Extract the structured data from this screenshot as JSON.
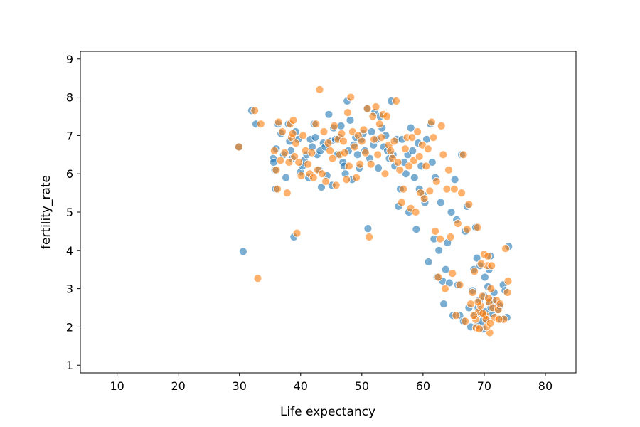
{
  "chart_data": {
    "type": "scatter",
    "title": "",
    "xlabel": "Life expectancy",
    "ylabel": "fertility_rate",
    "xlim": [
      4,
      85
    ],
    "ylim": [
      0.8,
      9.2
    ],
    "xticks": [
      10,
      20,
      30,
      40,
      50,
      60,
      70,
      80
    ],
    "yticks": [
      1,
      2,
      3,
      4,
      5,
      6,
      7,
      8,
      9
    ],
    "grid": false,
    "legend": "none",
    "series": [
      {
        "color": "#1f77b4",
        "points": [
          [
            29.9,
            6.7
          ],
          [
            30.6,
            3.97
          ],
          [
            32.0,
            7.65
          ],
          [
            32.7,
            7.3
          ],
          [
            35.5,
            6.4
          ],
          [
            35.6,
            6.3
          ],
          [
            35.8,
            6.1
          ],
          [
            35.9,
            5.6
          ],
          [
            36.0,
            6.65
          ],
          [
            36.3,
            7.3
          ],
          [
            36.8,
            7.05
          ],
          [
            37.2,
            6.5
          ],
          [
            37.6,
            5.9
          ],
          [
            38.0,
            7.3
          ],
          [
            38.2,
            6.85
          ],
          [
            38.4,
            6.6
          ],
          [
            38.6,
            6.4
          ],
          [
            38.9,
            4.35
          ],
          [
            39.2,
            7.1
          ],
          [
            39.6,
            6.9
          ],
          [
            40.0,
            6.05
          ],
          [
            40.3,
            6.2
          ],
          [
            40.6,
            6.35
          ],
          [
            41.0,
            6.5
          ],
          [
            41.3,
            5.9
          ],
          [
            41.6,
            6.9
          ],
          [
            41.9,
            6.7
          ],
          [
            42.2,
            7.3
          ],
          [
            42.4,
            6.95
          ],
          [
            42.7,
            6.5
          ],
          [
            43.0,
            6.1
          ],
          [
            43.2,
            6.6
          ],
          [
            43.4,
            5.65
          ],
          [
            43.7,
            6.8
          ],
          [
            44.0,
            6.7
          ],
          [
            44.3,
            5.95
          ],
          [
            44.6,
            7.55
          ],
          [
            44.9,
            6.85
          ],
          [
            45.1,
            5.7
          ],
          [
            45.4,
            7.2
          ],
          [
            45.7,
            6.9
          ],
          [
            46.0,
            6.5
          ],
          [
            46.3,
            6.95
          ],
          [
            46.6,
            7.25
          ],
          [
            46.9,
            6.3
          ],
          [
            47.1,
            6.2
          ],
          [
            47.3,
            6.0
          ],
          [
            47.6,
            7.9
          ],
          [
            47.8,
            6.6
          ],
          [
            48.1,
            7.4
          ],
          [
            48.4,
            5.85
          ],
          [
            48.7,
            6.75
          ],
          [
            49.0,
            6.95
          ],
          [
            49.3,
            6.5
          ],
          [
            49.6,
            6.15
          ],
          [
            49.9,
            6.9
          ],
          [
            50.2,
            7.05
          ],
          [
            50.5,
            6.6
          ],
          [
            50.8,
            7.7
          ],
          [
            51.0,
            4.57
          ],
          [
            51.3,
            6.4
          ],
          [
            51.6,
            7.1
          ],
          [
            51.9,
            6.75
          ],
          [
            52.1,
            7.6
          ],
          [
            52.4,
            6.9
          ],
          [
            52.7,
            6.15
          ],
          [
            53.0,
            7.5
          ],
          [
            53.3,
            7.2
          ],
          [
            53.6,
            6.7
          ],
          [
            53.9,
            7.0
          ],
          [
            54.2,
            6.6
          ],
          [
            54.5,
            6.4
          ],
          [
            54.8,
            7.9
          ],
          [
            55.1,
            6.5
          ],
          [
            55.4,
            6.2
          ],
          [
            55.7,
            6.9
          ],
          [
            56.0,
            5.15
          ],
          [
            56.3,
            5.6
          ],
          [
            56.6,
            6.9
          ],
          [
            56.9,
            6.3
          ],
          [
            57.2,
            6.0
          ],
          [
            57.5,
            6.5
          ],
          [
            57.7,
            5.0
          ],
          [
            58.0,
            7.2
          ],
          [
            58.3,
            6.6
          ],
          [
            58.6,
            5.9
          ],
          [
            58.9,
            4.55
          ],
          [
            59.2,
            6.8
          ],
          [
            59.4,
            5.6
          ],
          [
            59.7,
            6.2
          ],
          [
            60.0,
            5.45
          ],
          [
            60.3,
            5.25
          ],
          [
            60.6,
            6.9
          ],
          [
            60.9,
            3.7
          ],
          [
            61.2,
            7.3
          ],
          [
            61.5,
            6.3
          ],
          [
            61.8,
            4.3
          ],
          [
            62.0,
            5.9
          ],
          [
            62.3,
            3.3
          ],
          [
            62.6,
            4.0
          ],
          [
            62.9,
            5.25
          ],
          [
            63.2,
            3.2
          ],
          [
            63.4,
            2.6
          ],
          [
            63.7,
            3.5
          ],
          [
            64.0,
            4.2
          ],
          [
            64.3,
            3.15
          ],
          [
            64.6,
            5.0
          ],
          [
            64.9,
            2.3
          ],
          [
            65.2,
            5.85
          ],
          [
            65.5,
            4.8
          ],
          [
            65.7,
            3.1
          ],
          [
            66.0,
            2.3
          ],
          [
            66.3,
            6.5
          ],
          [
            66.6,
            2.15
          ],
          [
            66.9,
            4.5
          ],
          [
            67.2,
            5.15
          ],
          [
            67.5,
            2.5
          ],
          [
            67.8,
            2.0
          ],
          [
            68.1,
            2.95
          ],
          [
            68.3,
            3.5
          ],
          [
            68.6,
            4.6
          ],
          [
            68.9,
            2.05
          ],
          [
            69.2,
            2.7
          ],
          [
            69.5,
            2.35
          ],
          [
            69.8,
            1.95
          ],
          [
            70.1,
            3.3
          ],
          [
            70.4,
            2.2
          ],
          [
            70.7,
            2.65
          ],
          [
            71.0,
            3.85
          ],
          [
            71.3,
            2.35
          ],
          [
            71.6,
            2.9
          ],
          [
            71.9,
            2.6
          ],
          [
            72.2,
            2.45
          ],
          [
            72.5,
            2.55
          ],
          [
            72.8,
            2.2
          ],
          [
            73.1,
            3.1
          ],
          [
            73.4,
            2.95
          ],
          [
            73.7,
            2.25
          ],
          [
            74.0,
            4.1
          ],
          [
            68.5,
            2.3
          ],
          [
            69.0,
            2.5
          ],
          [
            69.3,
            3.6
          ],
          [
            70.0,
            2.8
          ],
          [
            70.2,
            2.4
          ],
          [
            70.6,
            3.05
          ],
          [
            71.1,
            2.5
          ],
          [
            69.7,
            2.15
          ],
          [
            68.8,
            3.8
          ],
          [
            70.8,
            3.5
          ],
          [
            71.4,
            2.7
          ]
        ]
      },
      {
        "color": "#ff7f0e",
        "points": [
          [
            29.9,
            6.7
          ],
          [
            32.5,
            7.65
          ],
          [
            33.0,
            3.27
          ],
          [
            33.5,
            7.3
          ],
          [
            35.7,
            6.6
          ],
          [
            36.0,
            6.1
          ],
          [
            36.2,
            5.6
          ],
          [
            36.4,
            7.35
          ],
          [
            36.7,
            6.35
          ],
          [
            37.0,
            7.1
          ],
          [
            37.4,
            6.55
          ],
          [
            37.8,
            5.5
          ],
          [
            38.1,
            6.3
          ],
          [
            38.3,
            7.3
          ],
          [
            38.5,
            6.95
          ],
          [
            38.7,
            7.05
          ],
          [
            38.8,
            7.4
          ],
          [
            39.0,
            6.45
          ],
          [
            39.2,
            6.8
          ],
          [
            39.4,
            4.45
          ],
          [
            39.7,
            6.3
          ],
          [
            40.1,
            5.95
          ],
          [
            40.4,
            7.0
          ],
          [
            40.8,
            6.6
          ],
          [
            41.2,
            6.25
          ],
          [
            41.5,
            6.0
          ],
          [
            41.8,
            6.55
          ],
          [
            42.1,
            5.9
          ],
          [
            42.5,
            7.3
          ],
          [
            42.8,
            6.1
          ],
          [
            43.1,
            8.2
          ],
          [
            43.5,
            6.0
          ],
          [
            43.8,
            7.1
          ],
          [
            44.1,
            5.8
          ],
          [
            44.5,
            6.8
          ],
          [
            44.8,
            6.6
          ],
          [
            45.2,
            6.4
          ],
          [
            45.5,
            7.25
          ],
          [
            45.8,
            5.7
          ],
          [
            46.1,
            6.9
          ],
          [
            46.4,
            6.5
          ],
          [
            46.7,
            7.05
          ],
          [
            47.0,
            6.85
          ],
          [
            47.2,
            6.55
          ],
          [
            47.5,
            5.85
          ],
          [
            47.7,
            7.6
          ],
          [
            47.9,
            6.2
          ],
          [
            48.2,
            8.0
          ],
          [
            48.5,
            7.1
          ],
          [
            48.8,
            6.7
          ],
          [
            49.1,
            5.9
          ],
          [
            49.4,
            7.0
          ],
          [
            49.7,
            6.25
          ],
          [
            50.0,
            6.85
          ],
          [
            50.3,
            7.15
          ],
          [
            50.6,
            6.55
          ],
          [
            50.9,
            7.7
          ],
          [
            51.2,
            4.35
          ],
          [
            51.5,
            6.25
          ],
          [
            51.8,
            7.5
          ],
          [
            52.0,
            6.9
          ],
          [
            52.3,
            7.75
          ],
          [
            52.6,
            6.5
          ],
          [
            52.9,
            7.3
          ],
          [
            53.2,
            6.95
          ],
          [
            53.5,
            7.55
          ],
          [
            53.8,
            6.0
          ],
          [
            54.1,
            7.5
          ],
          [
            54.4,
            6.75
          ],
          [
            54.7,
            6.6
          ],
          [
            55.0,
            6.4
          ],
          [
            55.3,
            6.85
          ],
          [
            55.6,
            7.9
          ],
          [
            55.9,
            6.3
          ],
          [
            56.2,
            6.1
          ],
          [
            56.5,
            5.25
          ],
          [
            56.8,
            5.6
          ],
          [
            57.1,
            6.65
          ],
          [
            57.4,
            6.95
          ],
          [
            57.7,
            6.2
          ],
          [
            58.0,
            5.1
          ],
          [
            58.2,
            6.95
          ],
          [
            58.5,
            6.35
          ],
          [
            58.8,
            5.0
          ],
          [
            59.1,
            7.1
          ],
          [
            59.4,
            6.45
          ],
          [
            59.6,
            5.5
          ],
          [
            59.9,
            6.75
          ],
          [
            60.2,
            5.35
          ],
          [
            60.5,
            6.2
          ],
          [
            60.8,
            6.65
          ],
          [
            61.1,
            5.55
          ],
          [
            61.4,
            7.35
          ],
          [
            61.7,
            6.95
          ],
          [
            62.0,
            4.5
          ],
          [
            62.2,
            5.8
          ],
          [
            62.5,
            3.3
          ],
          [
            62.8,
            4.3
          ],
          [
            63.0,
            7.25
          ],
          [
            63.3,
            6.5
          ],
          [
            63.6,
            3.0
          ],
          [
            63.9,
            5.6
          ],
          [
            64.2,
            6.1
          ],
          [
            64.5,
            4.35
          ],
          [
            64.8,
            3.4
          ],
          [
            65.1,
            5.6
          ],
          [
            65.4,
            2.3
          ],
          [
            65.7,
            4.7
          ],
          [
            66.0,
            3.1
          ],
          [
            66.3,
            5.5
          ],
          [
            66.6,
            6.5
          ],
          [
            66.9,
            2.15
          ],
          [
            67.2,
            4.55
          ],
          [
            67.5,
            5.2
          ],
          [
            67.8,
            2.6
          ],
          [
            68.1,
            2.9
          ],
          [
            68.4,
            3.45
          ],
          [
            68.6,
            2.2
          ],
          [
            68.9,
            4.6
          ],
          [
            69.1,
            2.4
          ],
          [
            69.4,
            2.55
          ],
          [
            69.7,
            2.8
          ],
          [
            70.0,
            3.9
          ],
          [
            70.2,
            2.3
          ],
          [
            70.5,
            3.6
          ],
          [
            70.8,
            2.65
          ],
          [
            71.1,
            3.0
          ],
          [
            71.4,
            2.5
          ],
          [
            71.7,
            2.25
          ],
          [
            72.0,
            2.7
          ],
          [
            72.3,
            2.45
          ],
          [
            72.6,
            2.6
          ],
          [
            73.2,
            2.2
          ],
          [
            73.5,
            4.05
          ],
          [
            73.8,
            2.9
          ],
          [
            73.9,
            3.2
          ],
          [
            68.7,
            1.98
          ],
          [
            69.2,
            1.95
          ],
          [
            70.3,
            2.2
          ],
          [
            70.9,
            1.85
          ],
          [
            69.5,
            3.65
          ],
          [
            70.6,
            3.85
          ],
          [
            71.2,
            3.6
          ],
          [
            68.3,
            2.3
          ],
          [
            69.8,
            2.35
          ],
          [
            70.4,
            2.0
          ],
          [
            71.0,
            2.1
          ],
          [
            72.4,
            2.2
          ],
          [
            69.0,
            2.65
          ],
          [
            70.7,
            2.75
          ]
        ]
      }
    ]
  }
}
